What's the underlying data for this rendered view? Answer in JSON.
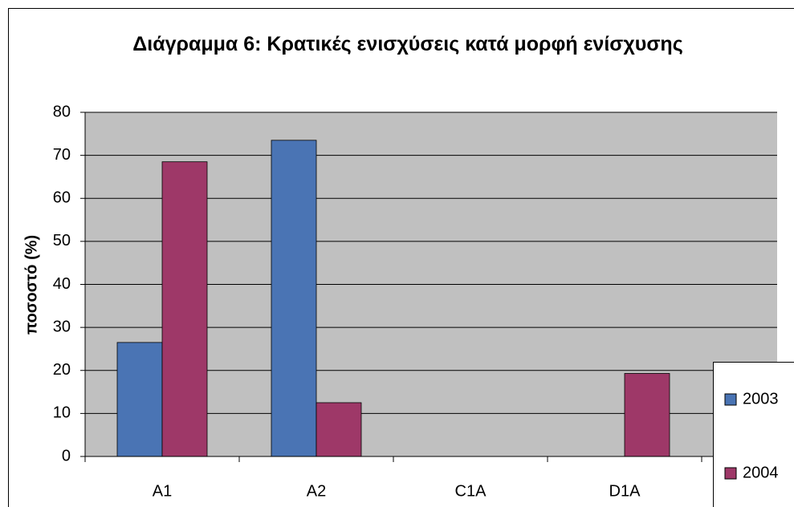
{
  "chart_data": {
    "type": "bar",
    "title": "Διάγραμμα 6: Κρατικές ενισχύσεις κατά μορφή ενίσχυσης",
    "ylabel": "ποσοστό (%)",
    "categories": [
      "A1",
      "A2",
      "C1A",
      "D1A"
    ],
    "series": [
      {
        "name": "2003",
        "color": "#4a74b4",
        "values": [
          26.5,
          73.5,
          0,
          0
        ]
      },
      {
        "name": "2004",
        "color": "#9e3868",
        "values": [
          68.5,
          12.5,
          0,
          19.3
        ]
      }
    ],
    "ylim": [
      0,
      80
    ],
    "yticks": [
      0,
      10,
      20,
      30,
      40,
      50,
      60,
      70,
      80
    ],
    "grid": true,
    "legend": "right"
  }
}
